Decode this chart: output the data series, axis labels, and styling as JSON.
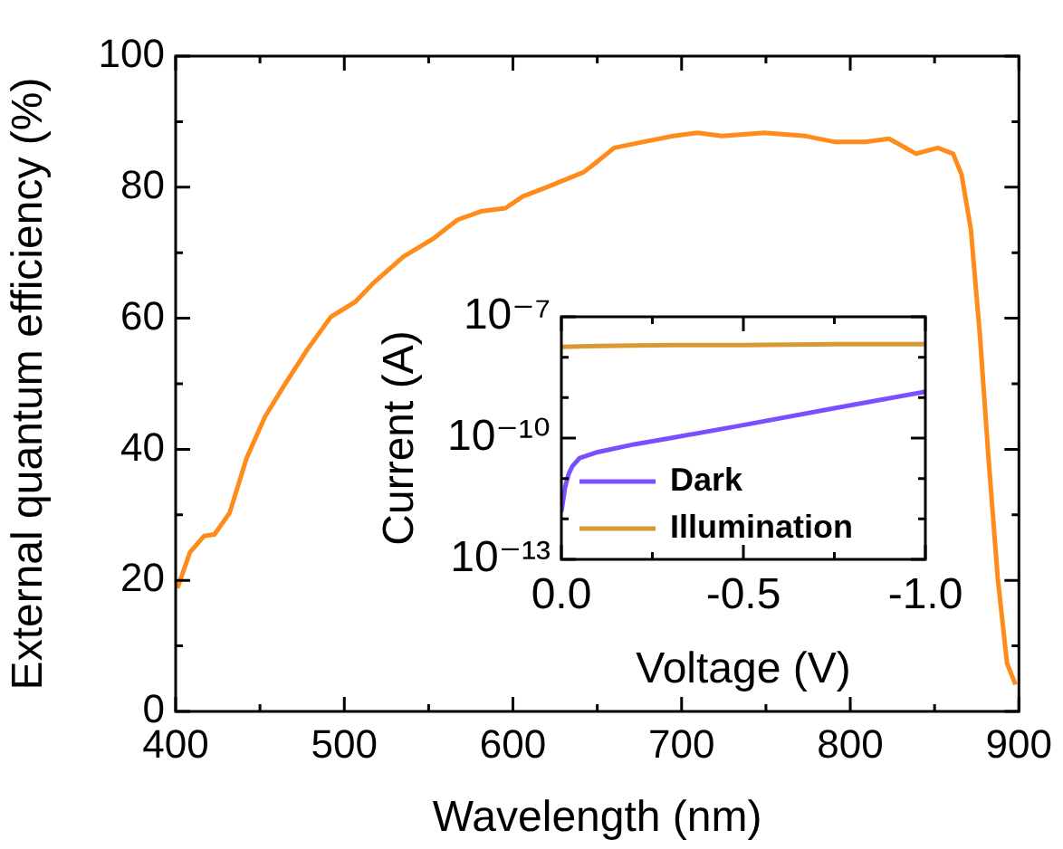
{
  "chart_data": [
    {
      "type": "line",
      "xlabel": "Wavelength (nm)",
      "ylabel": "External quantum efficiency (%)",
      "xlim": [
        400,
        900
      ],
      "ylim": [
        0,
        100
      ],
      "xticks": [
        400,
        500,
        600,
        700,
        800,
        900
      ],
      "yticks": [
        0,
        20,
        40,
        60,
        80,
        100
      ],
      "x": [
        401,
        408.5,
        417,
        423,
        432,
        442,
        453,
        464,
        478,
        492,
        506.5,
        517,
        535,
        553,
        567,
        581,
        595.5,
        606,
        620,
        642,
        649,
        660,
        677,
        695,
        709.5,
        724,
        749,
        773.6,
        791,
        809,
        823,
        839,
        852,
        861,
        866,
        871.5,
        877,
        882,
        887.5,
        893,
        898
      ],
      "series": [
        {
          "color": "#ff8c1a",
          "values": [
            18.8,
            24.3,
            26.8,
            27,
            30.3,
            38.6,
            45,
            49.6,
            55.2,
            60.2,
            62.5,
            65.3,
            69.4,
            72.2,
            75,
            76.3,
            76.8,
            78.6,
            80,
            82.3,
            83.7,
            86,
            86.9,
            87.8,
            88.3,
            87.8,
            88.3,
            87.8,
            86.9,
            86.9,
            87.4,
            85.1,
            86,
            85.1,
            81.9,
            73.6,
            57,
            38.6,
            20.2,
            7.3,
            4.1
          ]
        }
      ]
    },
    {
      "type": "line",
      "xlabel": "Voltage (V)",
      "ylabel": "Current (A)",
      "log": "y",
      "xlim": [
        0,
        -1
      ],
      "ylim": [
        1e-13,
        1e-07
      ],
      "xticks": [
        {
          "value": 0,
          "label": "0.0"
        },
        {
          "value": -0.5,
          "label": "-0.5"
        },
        {
          "value": -1,
          "label": "-1.0"
        }
      ],
      "yticks": [
        {
          "value": 1e-13,
          "label": "10⁻¹³"
        },
        {
          "value": 1e-10,
          "label": "10⁻¹⁰"
        },
        {
          "value": 1e-07,
          "label": "10⁻⁷"
        }
      ],
      "legend": "bottom",
      "series": [
        {
          "name": "Dark",
          "color": "#7b4fff",
          "x": [
            0,
            -0.005,
            -0.01,
            -0.02,
            -0.03,
            -0.05,
            -0.1,
            -0.2,
            -0.3,
            -0.5,
            -0.75,
            -1
          ],
          "values": [
            1.5e-12,
            3e-12,
            6e-12,
            1.3e-11,
            2e-11,
            3.2e-11,
            4.5e-11,
            7e-11,
            1e-10,
            2.1e-10,
            5.5e-10,
            1.4e-09
          ]
        },
        {
          "name": "Illumination",
          "color": "#d99a33",
          "x": [
            0,
            -0.1,
            -0.3,
            -0.5,
            -0.75,
            -1
          ],
          "values": [
            1.8e-08,
            1.9e-08,
            2e-08,
            2e-08,
            2.1e-08,
            2.1e-08
          ]
        }
      ]
    }
  ]
}
